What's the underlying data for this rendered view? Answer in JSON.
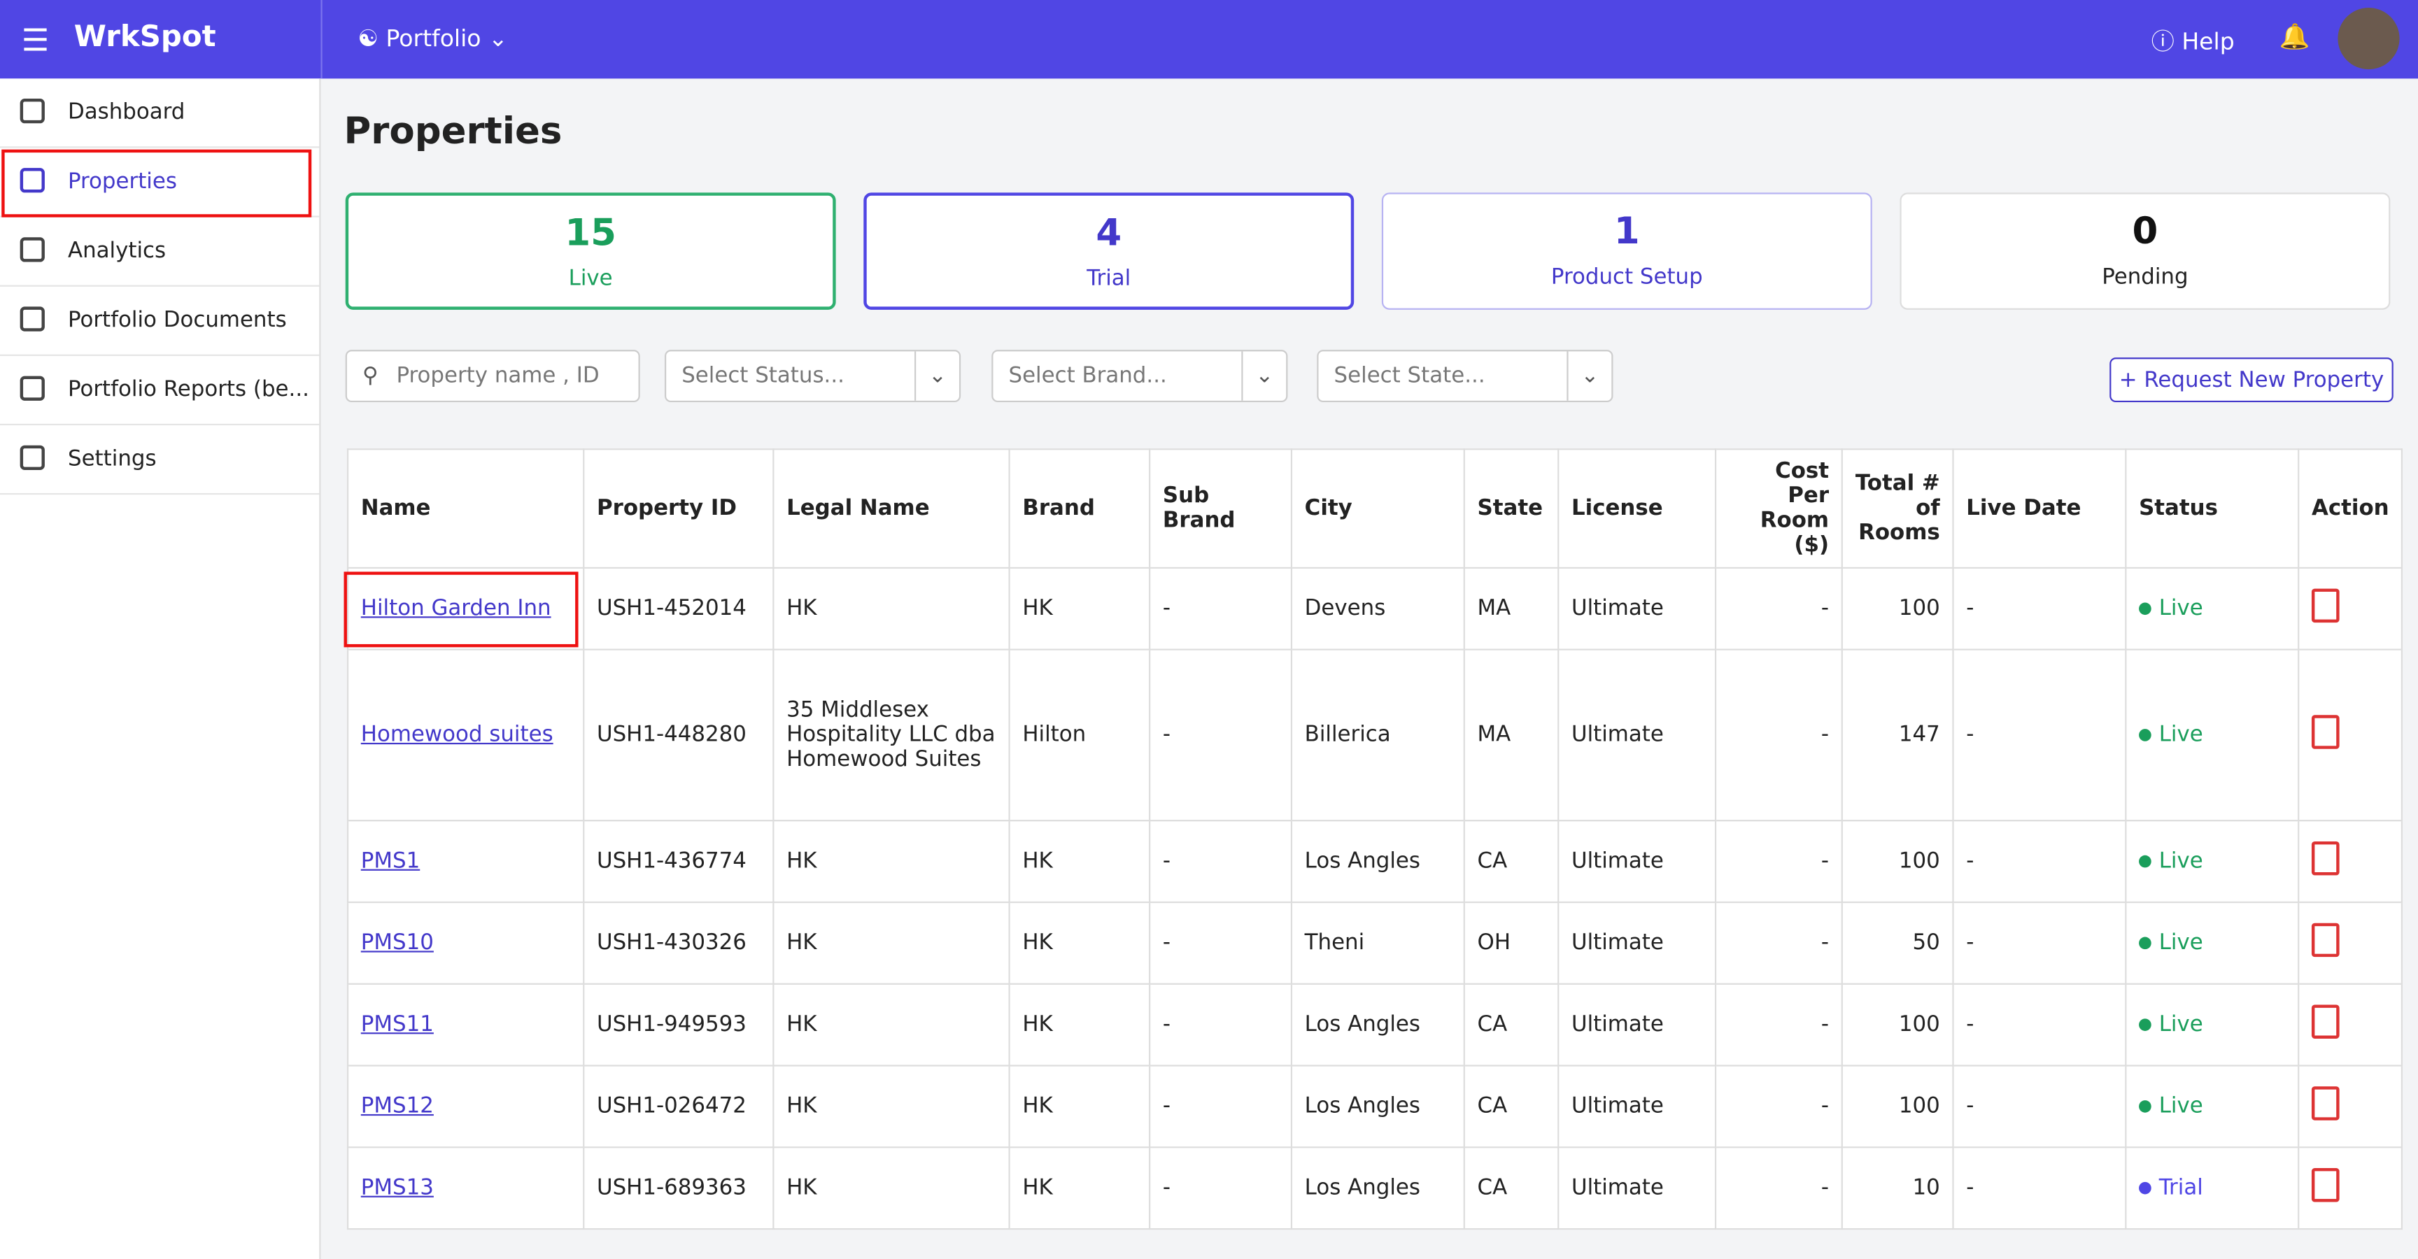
{
  "brand": "WrkSpot",
  "topbar": {
    "portfolio": "Portfolio",
    "help": "Help"
  },
  "nav": [
    "Dashboard",
    "Properties",
    "Analytics",
    "Portfolio Documents",
    "Portfolio Reports (be...",
    "Settings"
  ],
  "page_title": "Properties",
  "stats": [
    {
      "count": "15",
      "label": "Live"
    },
    {
      "count": "4",
      "label": "Trial"
    },
    {
      "count": "1",
      "label": "Product Setup"
    },
    {
      "count": "0",
      "label": "Pending"
    }
  ],
  "filters": {
    "search": "Property name , ID",
    "status": "Select Status...",
    "brand": "Select Brand...",
    "state": "Select State..."
  },
  "request_button": "+ Request New Property",
  "table": {
    "headers": [
      "Name",
      "Property ID",
      "Legal Name",
      "Brand",
      "Sub Brand",
      "City",
      "State",
      "License",
      "Cost Per Room ($)",
      "Total # of Rooms",
      "Live Date",
      "Status",
      "Action"
    ],
    "rows": [
      [
        "Hilton Garden Inn",
        "USH1-452014",
        "HK",
        "HK",
        "-",
        "Devens",
        "MA",
        "Ultimate",
        "-",
        "100",
        "-",
        "Live"
      ],
      [
        "Homewood suites",
        "USH1-448280",
        "35 Middlesex Hospitality LLC dba Homewood Suites",
        "Hilton",
        "-",
        "Billerica",
        "MA",
        "Ultimate",
        "-",
        "147",
        "-",
        "Live"
      ],
      [
        "PMS1",
        "USH1-436774",
        "HK",
        "HK",
        "-",
        "Los Angles",
        "CA",
        "Ultimate",
        "-",
        "100",
        "-",
        "Live"
      ],
      [
        "PMS10",
        "USH1-430326",
        "HK",
        "HK",
        "-",
        "Theni",
        "OH",
        "Ultimate",
        "-",
        "50",
        "-",
        "Live"
      ],
      [
        "PMS11",
        "USH1-949593",
        "HK",
        "HK",
        "-",
        "Los Angles",
        "CA",
        "Ultimate",
        "-",
        "100",
        "-",
        "Live"
      ],
      [
        "PMS12",
        "USH1-026472",
        "HK",
        "HK",
        "-",
        "Los Angles",
        "CA",
        "Ultimate",
        "-",
        "100",
        "-",
        "Live"
      ],
      [
        "PMS13",
        "USH1-689363",
        "HK",
        "HK",
        "-",
        "Los Angles",
        "CA",
        "Ultimate",
        "-",
        "10",
        "-",
        "Trial"
      ]
    ]
  }
}
